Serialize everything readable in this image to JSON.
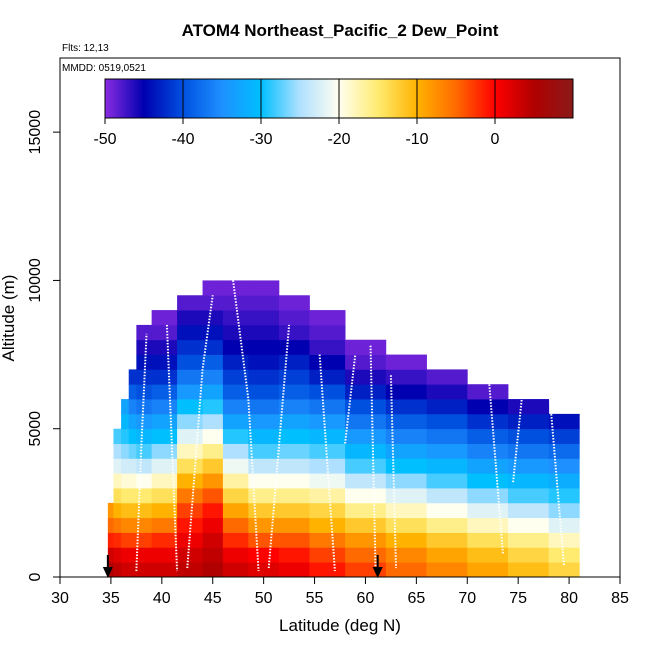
{
  "chart_data": {
    "type": "heatmap",
    "title": "ATOM4 Northeast_Pacific_2 Dew_Point",
    "flights_label": "Flts: 12,13",
    "dates_label": "MMDD: 0519,0521",
    "xlabel": "Latitude (deg N)",
    "ylabel": "Altitude (m)",
    "xlim": [
      30,
      85
    ],
    "ylim": [
      0,
      17500
    ],
    "x_ticks": [
      "30",
      "35",
      "40",
      "45",
      "50",
      "55",
      "60",
      "65",
      "70",
      "75",
      "80",
      "85"
    ],
    "y_ticks": [
      "0",
      "5000",
      "10000",
      "15000"
    ],
    "colorbar": {
      "range": [
        -50,
        10
      ],
      "ticks": [
        "-50",
        "-40",
        "-30",
        "-20",
        "-10",
        "0"
      ],
      "colors": [
        "#8a2be2",
        "#0000b0",
        "#0050e0",
        "#1e90ff",
        "#00bfff",
        "#b0e0ff",
        "#fffff0",
        "#ffeb70",
        "#ffb300",
        "#ff6a00",
        "#ff0000",
        "#b00000",
        "#8b1a1a"
      ]
    },
    "columns": [
      {
        "lat": 35.0,
        "top": 2500,
        "values": [
          5.0,
          3.0,
          -1.5,
          -5.0,
          -8.0
        ]
      },
      {
        "lat": 35.5,
        "top": 5000,
        "values": [
          4.0,
          2.0,
          -2.0,
          -6.0,
          -10.0,
          -14.0,
          -18.0,
          -22.0,
          -25.0,
          -28.0
        ]
      },
      {
        "lat": 36.5,
        "top": 6000,
        "values": [
          3.0,
          1.0,
          -3.0,
          -7.0,
          -11.0,
          -15.0,
          -19.0,
          -23.0,
          -26.0,
          -29.0,
          -31.0,
          -33.0
        ]
      },
      {
        "lat": 37.0,
        "top": 7000,
        "values": [
          3.0,
          1.0,
          -3.0,
          -7.0,
          -11.0,
          -15.0,
          -19.0,
          -23.0,
          -27.0,
          -30.0,
          -33.0,
          -36.0,
          -39.0,
          -42.0
        ]
      },
      {
        "lat": 38.0,
        "top": 8500,
        "values": [
          3.0,
          1.0,
          -3.0,
          -7.0,
          -11.0,
          -15.0,
          -20.0,
          -24.0,
          -28.0,
          -31.0,
          -34.0,
          -37.0,
          -40.0,
          -42.0,
          -44.0,
          -46.0,
          -48.0
        ]
      },
      {
        "lat": 40.0,
        "top": 9000,
        "values": [
          3.0,
          1.0,
          -2.0,
          -6.0,
          -10.0,
          -14.0,
          -18.0,
          -22.0,
          -26.0,
          -30.0,
          -33.0,
          -36.0,
          -39.0,
          -42.0,
          -44.0,
          -46.0,
          -48.0,
          -49.0
        ]
      },
      {
        "lat": 43.0,
        "top": 9500,
        "values": [
          4.0,
          3.0,
          1.0,
          -1.0,
          -3.0,
          -6.0,
          -10.0,
          -14.0,
          -18.0,
          -22.0,
          -26.0,
          -30.0,
          -34.0,
          -37.0,
          -40.0,
          -42.0,
          -44.0,
          -46.0,
          -48.0
        ]
      },
      {
        "lat": 45.0,
        "top": 10000,
        "values": [
          5.0,
          4.0,
          3.0,
          1.0,
          -1.0,
          -4.0,
          -8.0,
          -12.0,
          -16.0,
          -20.0,
          -25.0,
          -29.0,
          -33.0,
          -36.0,
          -39.0,
          -42.0,
          -44.0,
          -46.0,
          -48.0,
          -49.0
        ]
      },
      {
        "lat": 47.0,
        "top": 10000,
        "values": [
          3.0,
          1.0,
          -2.0,
          -5.0,
          -9.0,
          -13.0,
          -17.0,
          -21.0,
          -25.0,
          -29.0,
          -33.0,
          -36.0,
          -39.0,
          -41.0,
          -43.0,
          -45.0,
          -46.0,
          -47.0,
          -48.0,
          -49.0
        ]
      },
      {
        "lat": 50.0,
        "top": 10000,
        "values": [
          2.0,
          0.0,
          -4.0,
          -8.0,
          -12.0,
          -16.0,
          -20.0,
          -24.0,
          -28.0,
          -31.0,
          -34.0,
          -37.0,
          -40.0,
          -42.0,
          -44.0,
          -45.0,
          -46.0,
          -47.0,
          -48.0,
          -49.0
        ]
      },
      {
        "lat": 53.0,
        "top": 9500,
        "values": [
          1.0,
          -1.0,
          -4.0,
          -8.0,
          -12.0,
          -16.0,
          -20.0,
          -24.0,
          -27.0,
          -30.0,
          -33.0,
          -36.0,
          -39.0,
          -41.0,
          -43.0,
          -45.0,
          -47.0,
          -48.0,
          -49.0
        ]
      },
      {
        "lat": 56.0,
        "top": 9000,
        "values": [
          -1.0,
          -3.0,
          -6.0,
          -10.0,
          -13.0,
          -17.0,
          -21.0,
          -25.0,
          -28.0,
          -31.0,
          -34.0,
          -37.0,
          -40.0,
          -43.0,
          -45.0,
          -47.0,
          -48.0,
          -49.0
        ]
      },
      {
        "lat": 60.0,
        "top": 8000,
        "values": [
          -3.0,
          -5.0,
          -8.0,
          -12.0,
          -16.0,
          -20.0,
          -24.0,
          -28.0,
          -31.0,
          -34.0,
          -37.0,
          -40.0,
          -43.0,
          -46.0,
          -48.0,
          -49.0
        ]
      },
      {
        "lat": 64.0,
        "top": 7500,
        "values": [
          -5.0,
          -7.0,
          -10.0,
          -14.0,
          -18.0,
          -22.0,
          -26.0,
          -30.0,
          -33.0,
          -36.0,
          -39.0,
          -42.0,
          -45.0,
          -47.0,
          -49.0
        ]
      },
      {
        "lat": 68.0,
        "top": 7000,
        "values": [
          -7.0,
          -9.0,
          -12.0,
          -16.0,
          -20.0,
          -24.0,
          -28.0,
          -31.0,
          -34.0,
          -37.0,
          -40.0,
          -43.0,
          -46.0,
          -48.0
        ]
      },
      {
        "lat": 72.0,
        "top": 6500,
        "values": [
          -9.0,
          -11.0,
          -14.0,
          -18.0,
          -22.0,
          -26.0,
          -30.0,
          -33.0,
          -36.0,
          -39.0,
          -42.0,
          -45.0,
          -48.0
        ]
      },
      {
        "lat": 76.0,
        "top": 6000,
        "values": [
          -11.0,
          -13.0,
          -16.0,
          -20.0,
          -24.0,
          -28.0,
          -31.0,
          -34.0,
          -37.0,
          -40.0,
          -43.0,
          -46.0
        ]
      },
      {
        "lat": 80.0,
        "top": 5500,
        "values": [
          -13.0,
          -15.0,
          -18.0,
          -22.0,
          -26.0,
          -29.0,
          -32.0,
          -35.0,
          -38.0,
          -41.0,
          -44.0
        ]
      }
    ],
    "flight_tracks": [
      {
        "lat": [
          37.5,
          38.0,
          38.5
        ],
        "alt": [
          200,
          4500,
          8200
        ]
      },
      {
        "lat": [
          40.5,
          41.5
        ],
        "alt": [
          8500,
          200
        ]
      },
      {
        "lat": [
          42.5,
          44.0,
          45.0
        ],
        "alt": [
          300,
          7000,
          9500
        ]
      },
      {
        "lat": [
          47.0,
          48.5,
          49.5
        ],
        "alt": [
          10000,
          6000,
          200
        ]
      },
      {
        "lat": [
          50.5,
          52.5
        ],
        "alt": [
          300,
          8500
        ]
      },
      {
        "lat": [
          55.5,
          57.0
        ],
        "alt": [
          7500,
          200
        ]
      },
      {
        "lat": [
          58.0,
          59.0
        ],
        "alt": [
          4500,
          7500
        ]
      },
      {
        "lat": [
          60.5,
          61.0
        ],
        "alt": [
          7800,
          200
        ]
      },
      {
        "lat": [
          62.5,
          63.0
        ],
        "alt": [
          6800,
          300
        ]
      },
      {
        "lat": [
          72.0,
          73.5
        ],
        "alt": [
          7200,
          800
        ]
      },
      {
        "lat": [
          74.5,
          75.5
        ],
        "alt": [
          3200,
          6500
        ]
      },
      {
        "lat": [
          78.0,
          79.5
        ],
        "alt": [
          6500,
          400
        ]
      }
    ],
    "arrows": [
      {
        "lat": 34.7
      },
      {
        "lat": 61.2
      }
    ]
  }
}
